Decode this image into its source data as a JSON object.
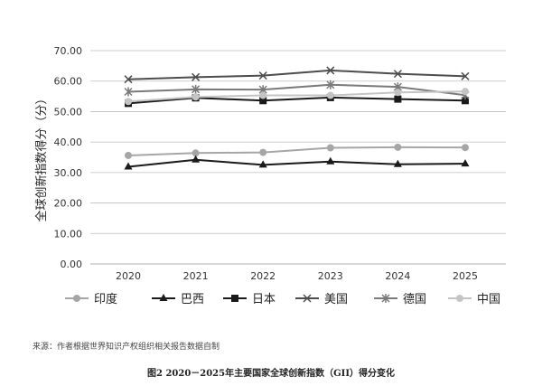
{
  "chart_data": {
    "type": "line",
    "ylabel": "全球创新指数得分（分）",
    "ylim": [
      0,
      70
    ],
    "yticks": [
      "0.00",
      "10.00",
      "20.00",
      "30.00",
      "40.00",
      "50.00",
      "60.00",
      "70.00"
    ],
    "x": [
      "2020",
      "2021",
      "2022",
      "2023",
      "2024",
      "2025"
    ],
    "grid": true,
    "legend_position": "bottom",
    "series": [
      {
        "name": "印度",
        "marker": "circle",
        "color": "#a6a6a6",
        "values": [
          35.6,
          36.4,
          36.6,
          38.1,
          38.3,
          38.2
        ]
      },
      {
        "name": "巴西",
        "marker": "triangle",
        "color": "#1a1a1a",
        "values": [
          31.9,
          34.2,
          32.5,
          33.6,
          32.7,
          32.9
        ]
      },
      {
        "name": "日本",
        "marker": "square",
        "color": "#1a1a1a",
        "values": [
          52.7,
          54.5,
          53.6,
          54.6,
          54.1,
          53.6
        ]
      },
      {
        "name": "美国",
        "marker": "x",
        "color": "#4d4d4d",
        "values": [
          60.6,
          61.3,
          61.8,
          63.5,
          62.4,
          61.6
        ]
      },
      {
        "name": "德国",
        "marker": "asterisk",
        "color": "#7a7a7a",
        "values": [
          56.5,
          57.3,
          57.2,
          58.8,
          58.1,
          55.4
        ]
      },
      {
        "name": "中国",
        "marker": "circle",
        "color": "#c4c4c4",
        "values": [
          53.3,
          54.8,
          55.3,
          55.3,
          56.3,
          56.6
        ]
      }
    ]
  },
  "source_note": "来源：作者根据世界知识产权组织相关报告数据自制",
  "caption": "图2  2020－2025年主要国家全球创新指数（GII）得分变化"
}
